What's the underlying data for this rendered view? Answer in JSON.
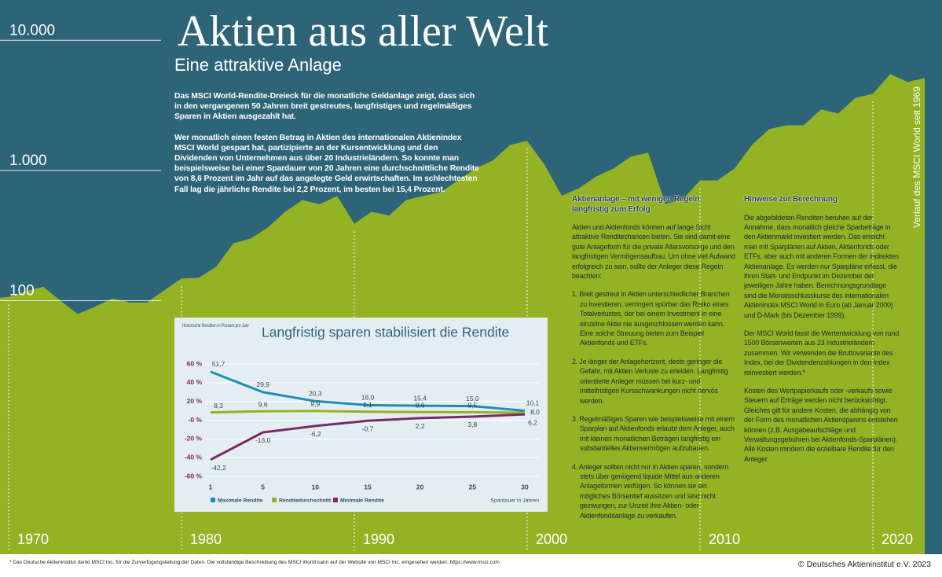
{
  "header": {
    "title": "Aktien aus aller Welt",
    "subtitle": "Eine attraktive Anlage"
  },
  "intro": [
    "Das MSCI World-Rendite-Dreieck für die monatliche Geldanlage zeigt, dass sich in den vergangenen 50 Jahren breit gestreutes, langfristiges und regelmäßiges Sparen in Aktien ausgezahlt hat.",
    "Wer monatlich einen festen Betrag in Aktien des internationalen Aktienindex MSCI World gespart hat, partizipierte an der Kursentwicklung und den Dividenden von Unternehmen aus über 20 Industrieländern. So konnte man beispielsweise bei einer Spardauer von 20 Jahren eine durchschnittliche Rendite von 8,6 Prozent im Jahr auf das angelegte Geld erwirtschaften. Im schlechtesten Fall lag die jährliche Rendite bei 2,2 Prozent, im besten bei 15,4 Prozent."
  ],
  "sections": [
    {
      "heading": "Aktienanlage – mit wenigen Regeln langfristig zum Erfolg",
      "paragraphs": [
        "Aktien und Aktienfonds können auf lange Sicht attraktive Renditechancen bieten. Sie sind damit eine gute Anlageform für die private Altersvorsorge und den langfristigen Vermögensaufbau. Um ohne viel Aufwand erfolgreich zu sein, sollte der Anleger diese Regeln beachten:"
      ],
      "items": [
        "1. Breit gestreut in Aktien unterschiedlicher Branchen zu investieren, verringert spürbar das Risiko eines Totalverlustes, der bei einem Investment in eine einzelne Aktie nie ausgeschlossen werden kann. Eine solche Streuung bieten zum Beispiel Aktienfonds und ETFs.",
        "2. Je länger der Anlagehorizont, desto geringer die Gefahr, mit Aktien Verluste zu erleiden. Langfristig orientierte Anleger müssen bei kurz- und mittelfristigen Kursschwankungen nicht nervös werden.",
        "3. Regelmäßiges Sparen wie beispielsweise mit einem Sparplan auf Aktienfonds erlaubt dem Anleger, auch mit kleinen monatlichen Beträgen langfristig ein substantielles Aktienvermögen aufzubauen.",
        "4. Anleger sollten nicht nur in Aktien sparen, sondern stets über genügend liquide Mittel aus anderen Anlageformen verfügen. So können sie ein mögliches Börsentief aussitzen und sind nicht gezwungen, zur Unzeit ihre Aktien- oder Aktienfondsanlage zu verkaufen."
      ]
    },
    {
      "heading": "Hinweise zur Berechnung",
      "paragraphs": [
        "Die abgebildeten Renditen beruhen auf der Annahme, dass monatlich gleiche Sparbeträge in den Aktienmarkt investiert werden. Das erreicht man mit Sparplänen auf Aktien, Aktienfonds oder ETFs, aber auch mit anderen Formen der indirekten Aktienanlage. Es werden nur Sparpläne erfasst, die ihren Start- und Endpunkt im Dezember der jeweiligen Jahre haben. Berechnungsgrundlage sind die Monatsschlusskurse des internationalen Aktienindex MSCI World in Euro (ab Januar 2000) und D-Mark (bis Dezember 1999).",
        "Der MSCI World fasst die Wertentwicklung von rund 1500 Börsenwerten aus 23 Industrieländern zusammen. Wir verwenden die Bruttovariante des Index, bei der Dividendenzahlungen in den Index reinvestiert werden.*",
        "Kosten des Wertpapierkaufs oder -verkaufs sowie Steuern auf Erträge werden nicht berücksichtigt. Gleiches gilt für andere Kosten, die abhängig von der Form des monatlichen Aktiensparens entstehen können (z.B. Ausgabeaufschläge und Verwaltungsgebühren bei Aktienfonds-Sparplänen). Alle Kosten mindern die erzielbare Rendite für den Anleger."
      ]
    }
  ],
  "footnote": "* Das Deutsche Aktieninstitut dankt MSCI Inc. für die Zurverfügungstellung der Daten. Die vollständige Beschreibung des MSCI World kann auf der Website von MSCI Inc. eingesehen werden: https://www.msci.com",
  "copyright": "© Deutsches Aktieninstitut e.V. 2023",
  "chart_data": [
    {
      "type": "area",
      "y_label": "Verlauf des MSCI World seit 1969",
      "x": [
        1969,
        1970,
        1971,
        1972,
        1973,
        1974,
        1975,
        1976,
        1977,
        1978,
        1979,
        1980,
        1981,
        1982,
        1983,
        1984,
        1985,
        1986,
        1987,
        1988,
        1989,
        1990,
        1991,
        1992,
        1993,
        1994,
        1995,
        1996,
        1997,
        1998,
        1999,
        2000,
        2001,
        2002,
        2003,
        2004,
        2005,
        2006,
        2007,
        2008,
        2009,
        2010,
        2011,
        2012,
        2013,
        2014,
        2015,
        2016,
        2017,
        2018,
        2019,
        2020,
        2021,
        2022,
        2023
      ],
      "values": [
        104,
        107,
        118,
        128,
        100,
        79,
        90,
        104,
        97,
        97,
        120,
        148,
        150,
        182,
        276,
        300,
        365,
        482,
        593,
        550,
        637,
        391,
        482,
        450,
        593,
        637,
        682,
        840,
        1035,
        1190,
        1570,
        1690,
        1110,
        640,
        731,
        901,
        1035,
        1277,
        1370,
        553,
        600,
        840,
        840,
        1035,
        1570,
        2075,
        2225,
        2225,
        2940,
        2740,
        3620,
        3880,
        5500,
        4790,
        5130
      ],
      "color": "#94b324",
      "background": "#2d6478",
      "log_scale": true,
      "xlim": [
        1969.5,
        2024
      ],
      "xticks": [
        1970,
        1980,
        1990,
        2000,
        2010,
        2020
      ],
      "ylim": [
        1.13,
        20400
      ],
      "yticks": [
        100,
        {
          "value": 1000,
          "label": "1.000"
        },
        {
          "value": 10000,
          "label": "10.000"
        }
      ],
      "grid": true
    },
    {
      "type": "line",
      "title": "Langfristig sparen stabilisiert die Rendite",
      "y_label": "Historische Renditen in Prozent pro Jahr",
      "x_label": "Spardauer in Jahren",
      "categories": [
        1,
        5,
        10,
        15,
        20,
        25,
        30
      ],
      "series": [
        {
          "name": "Maximale Rendite",
          "color": "#1b8fb0",
          "values": [
            51.7,
            29.9,
            20.3,
            16.0,
            15.4,
            15.0,
            10.1
          ],
          "value_labels": [
            "51,7",
            "29,9",
            "20,3",
            "16,0",
            "15,4",
            "15,0",
            "10,1"
          ]
        },
        {
          "name": "Renditedurchschnitt",
          "color": "#94b324",
          "values": [
            8.3,
            9.6,
            9.9,
            9.1,
            8.6,
            8.5,
            8.0
          ],
          "value_labels": [
            "8,3",
            "9,6",
            "9,9",
            "9,1",
            "8,6",
            "8,5",
            "8,0"
          ]
        },
        {
          "name": "Minimale Rendite",
          "color": "#7b2a66",
          "values": [
            -42.2,
            -13.0,
            -6.2,
            -0.7,
            2.2,
            3.8,
            6.2
          ],
          "value_labels": [
            "-42,2",
            "-13,0",
            "-6,2",
            "-0,7",
            "2,2",
            "3,8",
            "6,2"
          ]
        }
      ],
      "ylim": [
        -60,
        60
      ],
      "yticks": [
        {
          "value": -60,
          "label": "-60 %"
        },
        {
          "value": -40,
          "label": "-40 %"
        },
        {
          "value": -20,
          "label": "-20 %"
        },
        {
          "value": 0,
          "label": "-0 %"
        },
        {
          "value": 20,
          "label": "20 %"
        },
        {
          "value": 40,
          "label": "40 %"
        },
        {
          "value": 60,
          "label": "60 %"
        }
      ],
      "grid": true,
      "legend": "bottom"
    }
  ]
}
